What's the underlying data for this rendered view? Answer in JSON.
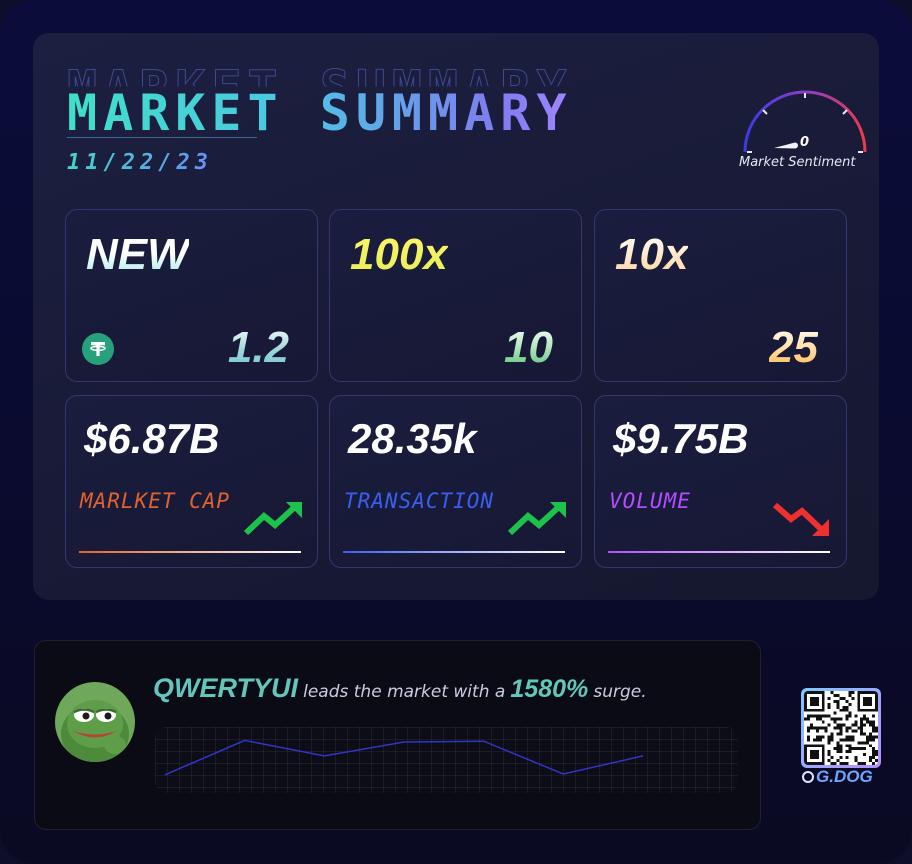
{
  "header": {
    "title": "MARKET SUMMARY",
    "date": "11/22/23"
  },
  "sentiment": {
    "value": "0",
    "label": "Market Sentiment",
    "level": 0
  },
  "tiles": [
    {
      "headline": "NEW",
      "value": "1.2",
      "icon": "tether-icon"
    },
    {
      "headline": "100x",
      "value": "10"
    },
    {
      "headline": "10x",
      "value": "25"
    }
  ],
  "stats": [
    {
      "value": "$6.87B",
      "label": "MARLKET CAP",
      "trend": "up",
      "color": "#e0622c"
    },
    {
      "value": "28.35k",
      "label": "TRANSACTION",
      "trend": "up",
      "color": "#3b5ef0"
    },
    {
      "value": "$9.75B",
      "label": "VOLUME",
      "trend": "down",
      "color": "#b34dff"
    }
  ],
  "leader": {
    "coin": "QWERTYUI",
    "text_before": "leads the market with a",
    "percent": "1580%",
    "text_after": "surge."
  },
  "sparkline": {
    "values": [
      0.1,
      0.92,
      0.55,
      0.88,
      0.9,
      0.12,
      0.55
    ],
    "color": "#2f36c9"
  },
  "brand": {
    "name": "G.DOG"
  }
}
